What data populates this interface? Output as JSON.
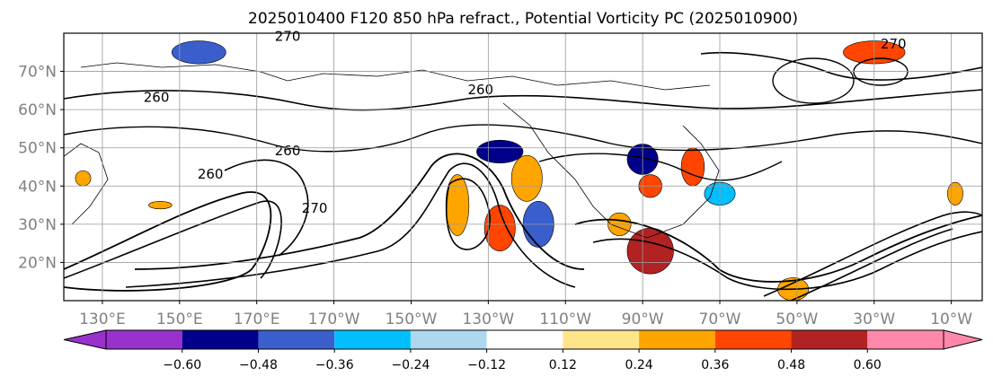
{
  "chart_data": {
    "type": "heatmap",
    "title": "2025010400 F120 850 hPa refract., Potential Vorticity PC (2025010900)",
    "map": {
      "projection": "cylindrical",
      "lon_range": [
        120,
        358
      ],
      "lat_range": [
        10,
        80
      ],
      "grid": true,
      "lat_ticks": [
        {
          "value": 70,
          "label": "70°N"
        },
        {
          "value": 60,
          "label": "60°N"
        },
        {
          "value": 50,
          "label": "50°N"
        },
        {
          "value": 40,
          "label": "40°N"
        },
        {
          "value": 30,
          "label": "30°N"
        },
        {
          "value": 20,
          "label": "20°N"
        }
      ],
      "lon_ticks": [
        {
          "value": 130,
          "label": "130°E"
        },
        {
          "value": 150,
          "label": "150°E"
        },
        {
          "value": 170,
          "label": "170°E"
        },
        {
          "value": 190,
          "label": "170°W"
        },
        {
          "value": 210,
          "label": "150°W"
        },
        {
          "value": 230,
          "label": "130°W"
        },
        {
          "value": 250,
          "label": "110°W"
        },
        {
          "value": 270,
          "label": "90°W"
        },
        {
          "value": 290,
          "label": "70°W"
        },
        {
          "value": 310,
          "label": "50°W"
        },
        {
          "value": 330,
          "label": "30°W"
        },
        {
          "value": 350,
          "label": "10°W"
        }
      ]
    },
    "contour_labels": [
      {
        "lon": 178,
        "lat": 78,
        "text": "270"
      },
      {
        "lon": 144,
        "lat": 62,
        "text": "260"
      },
      {
        "lon": 158,
        "lat": 42,
        "text": "260"
      },
      {
        "lon": 178,
        "lat": 48,
        "text": "260"
      },
      {
        "lon": 185,
        "lat": 33,
        "text": "270"
      },
      {
        "lon": 335,
        "lat": 76,
        "text": "270"
      },
      {
        "lon": 228,
        "lat": 64,
        "text": "260"
      }
    ],
    "shaded_anomalies": [
      {
        "lon": 155,
        "lat": 75,
        "rx": 7,
        "ry": 3,
        "value": -0.4
      },
      {
        "lon": 233,
        "lat": 49,
        "rx": 6,
        "ry": 3,
        "value": -0.5
      },
      {
        "lon": 240,
        "lat": 42,
        "rx": 4,
        "ry": 6,
        "value": 0.35
      },
      {
        "lon": 222,
        "lat": 35,
        "rx": 3,
        "ry": 8,
        "value": 0.35
      },
      {
        "lon": 243,
        "lat": 30,
        "rx": 4,
        "ry": 6,
        "value": -0.45
      },
      {
        "lon": 233,
        "lat": 29,
        "rx": 4,
        "ry": 6,
        "value": 0.4
      },
      {
        "lon": 270,
        "lat": 47,
        "rx": 4,
        "ry": 4,
        "value": -0.55
      },
      {
        "lon": 283,
        "lat": 45,
        "rx": 3,
        "ry": 5,
        "value": 0.45
      },
      {
        "lon": 272,
        "lat": 40,
        "rx": 3,
        "ry": 3,
        "value": 0.45
      },
      {
        "lon": 290,
        "lat": 38,
        "rx": 4,
        "ry": 3,
        "value": -0.35
      },
      {
        "lon": 272,
        "lat": 23,
        "rx": 6,
        "ry": 6,
        "value": 0.5
      },
      {
        "lon": 264,
        "lat": 30,
        "rx": 3,
        "ry": 3,
        "value": 0.3
      },
      {
        "lon": 330,
        "lat": 75,
        "rx": 8,
        "ry": 3,
        "value": 0.4
      },
      {
        "lon": 309,
        "lat": 13,
        "rx": 4,
        "ry": 3,
        "value": 0.3
      },
      {
        "lon": 145,
        "lat": 35,
        "rx": 3,
        "ry": 1,
        "value": 0.3
      },
      {
        "lon": 125,
        "lat": 42,
        "rx": 2,
        "ry": 2,
        "value": 0.3
      },
      {
        "lon": 351,
        "lat": 38,
        "rx": 2,
        "ry": 3,
        "value": 0.3
      }
    ],
    "colorbar": {
      "orientation": "horizontal",
      "extend": "both",
      "under_color": "#9932cc",
      "over_color": "#ff88aa",
      "colors": [
        "#9932cc",
        "#00008b",
        "#3a5fcd",
        "#00bfff",
        "#add8f0",
        "#ffffff",
        "#ffe58a",
        "#ffa500",
        "#ff4500",
        "#b22222",
        "#ff88aa"
      ],
      "ticks": [
        "−0.60",
        "−0.48",
        "−0.36",
        "−0.24",
        "−0.12",
        "0.12",
        "0.24",
        "0.36",
        "0.48",
        "0.60"
      ]
    }
  }
}
